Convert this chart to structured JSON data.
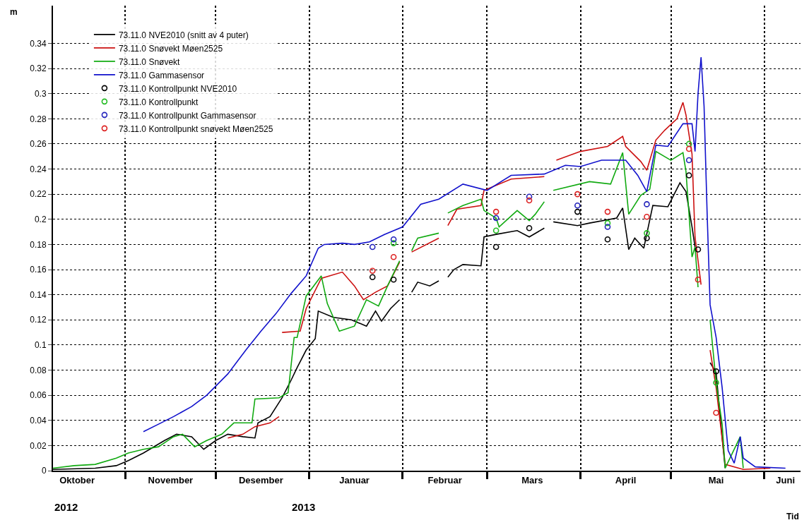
{
  "chart_data": {
    "type": "line",
    "xlabel": "Tid",
    "ylabel": "m",
    "annotations": [
      "2012",
      "2013"
    ],
    "xlim": [
      "2012-10-08",
      "2013-06-13"
    ],
    "xticks": [
      {
        "value": "2012-10-16",
        "label": "Oktober"
      },
      {
        "value": "2012-11-16",
        "label": "November"
      },
      {
        "value": "2012-12-16",
        "label": "Desember"
      },
      {
        "value": "2013-01-16",
        "label": "Januar"
      },
      {
        "value": "2013-02-15",
        "label": "Februar"
      },
      {
        "value": "2013-03-16",
        "label": "Mars"
      },
      {
        "value": "2013-04-16",
        "label": "April"
      },
      {
        "value": "2013-05-16",
        "label": "Mai"
      },
      {
        "value": "2013-06-08",
        "label": "Juni"
      },
      {
        "value": "2012-11-01",
        "label": null
      },
      {
        "value": "2012-12-01",
        "label": null
      },
      {
        "value": "2013-01-01",
        "label": null
      },
      {
        "value": "2013-02-01",
        "label": null
      },
      {
        "value": "2013-03-01",
        "label": null
      },
      {
        "value": "2013-04-01",
        "label": null
      },
      {
        "value": "2013-05-01",
        "label": null
      },
      {
        "value": "2013-06-01",
        "label": null
      }
    ],
    "ylim": [
      0,
      0.37
    ],
    "yticks": [
      0,
      0.02,
      0.04,
      0.06,
      0.08,
      0.1,
      0.12,
      0.14,
      0.16,
      0.18,
      0.2,
      0.22,
      0.24,
      0.26,
      0.28,
      0.3,
      0.32,
      0.34
    ],
    "grid": true,
    "legend": "top left",
    "line_style": "solid",
    "series": [
      {
        "name": "73.11.0 NVE2010 (snitt av 4 puter)",
        "color": "#000000",
        "x": [
          "2012-10-08",
          "2012-10-22",
          "2012-10-29",
          "2012-11-02",
          "2012-11-07",
          "2012-11-14",
          "2012-11-18",
          "2012-11-23",
          "2012-11-27",
          "2012-12-01",
          "2012-12-05",
          "2012-12-10",
          "2012-12-14",
          "2012-12-15",
          "2012-12-19",
          "2012-12-23",
          "2012-12-26",
          "2012-12-28",
          "2012-12-31",
          "2013-01-03",
          "2013-01-04",
          "2013-01-09",
          "2013-01-15",
          "2013-01-20",
          "2013-01-23",
          "2013-01-25",
          "2013-01-28",
          "2013-01-31",
          "2013-02-02",
          "2013-02-04",
          "2013-02-06",
          "2013-02-10",
          "2013-02-13",
          "2013-02-14",
          "2013-02-16",
          "2013-02-18",
          "2013-02-21",
          "2013-02-27",
          "2013-02-28",
          "2013-03-04",
          "2013-03-11",
          "2013-03-15",
          "2013-03-20",
          "2013-03-22",
          "2013-03-23",
          "2013-03-31",
          "2013-04-04",
          "2013-04-13",
          "2013-04-15",
          "2013-04-17",
          "2013-04-19",
          "2013-04-22",
          "2013-04-25",
          "2013-04-30",
          "2013-05-04",
          "2013-05-06",
          "2013-05-08",
          "2013-05-09",
          "2013-05-12",
          "2013-05-14",
          "2013-05-16",
          "2013-05-18",
          "2013-05-19"
        ],
        "values": [
          0.001,
          0.002,
          0.004,
          0.008,
          0.014,
          0.024,
          0.029,
          0.027,
          0.017,
          0.024,
          0.029,
          0.027,
          0.026,
          0.038,
          0.043,
          0.058,
          0.072,
          0.082,
          0.096,
          0.105,
          0.127,
          0.122,
          0.12,
          0.115,
          0.127,
          0.119,
          0.129,
          0.136,
          null,
          0.142,
          0.15,
          0.147,
          0.151,
          null,
          0.154,
          0.16,
          0.164,
          0.163,
          0.186,
          0.188,
          0.191,
          0.186,
          0.193,
          null,
          0.198,
          0.195,
          0.197,
          0.201,
          0.209,
          0.176,
          0.185,
          0.177,
          0.211,
          0.21,
          0.229,
          0.222,
          0.194,
          0.178,
          null,
          0.086,
          0.078,
          0.026,
          0.002
        ]
      },
      {
        "name": "73.11.0 Snøvekt Møen2525",
        "color": "#cc1111",
        "x": [
          "2012-12-05",
          "2012-12-10",
          "2012-12-14",
          "2012-12-19",
          "2012-12-22",
          "2012-12-22T12:00",
          "2012-12-23",
          "2012-12-29",
          "2012-12-31",
          "2013-01-05",
          "2013-01-12",
          "2013-01-16",
          "2013-01-19",
          "2013-01-23",
          "2013-01-27",
          "2013-01-31",
          "2013-02-02",
          "2013-02-04",
          "2013-02-13",
          "2013-02-14",
          "2013-02-16",
          "2013-02-19",
          "2013-02-27",
          "2013-02-28",
          "2013-03-09",
          "2013-03-20",
          "2013-03-22",
          "2013-03-24",
          "2013-04-01",
          "2013-04-10",
          "2013-04-15",
          "2013-04-16",
          "2013-04-21",
          "2013-04-23",
          "2013-04-26",
          "2013-04-29",
          "2013-05-03",
          "2013-05-05",
          "2013-05-06",
          "2013-05-08",
          "2013-05-09",
          "2013-05-11",
          "2013-05-12",
          "2013-05-14",
          "2013-05-16",
          "2013-05-17",
          "2013-05-19",
          "2013-05-25",
          "2013-06-03"
        ],
        "values": [
          0.026,
          0.029,
          0.035,
          0.038,
          0.043,
          null,
          0.11,
          0.111,
          0.129,
          0.153,
          0.158,
          0.147,
          0.136,
          0.142,
          0.147,
          0.166,
          null,
          0.174,
          0.185,
          null,
          0.195,
          0.208,
          0.211,
          0.223,
          0.232,
          0.234,
          null,
          0.247,
          0.254,
          0.258,
          0.266,
          0.258,
          0.246,
          0.239,
          0.263,
          0.271,
          0.28,
          0.293,
          0.283,
          0.252,
          0.186,
          0.148,
          null,
          0.096,
          0.066,
          0.046,
          0.005,
          0.001,
          0.002
        ]
      },
      {
        "name": "73.11.0 Snøvekt",
        "color": "#11aa11",
        "x": [
          "2012-10-08",
          "2012-10-15",
          "2012-10-22",
          "2012-10-29",
          "2012-11-02",
          "2012-11-07",
          "2012-11-12",
          "2012-11-17",
          "2012-11-20",
          "2012-11-24",
          "2012-11-28",
          "2012-12-03",
          "2012-12-07",
          "2012-12-13",
          "2012-12-14",
          "2012-12-22",
          "2012-12-25",
          "2012-12-27",
          "2012-12-28",
          "2012-12-31",
          "2013-01-05",
          "2013-01-07",
          "2013-01-11",
          "2013-01-16",
          "2013-01-20",
          "2013-01-24",
          "2013-01-27",
          "2013-01-31",
          "2013-02-02",
          "2013-02-04",
          "2013-02-06",
          "2013-02-13",
          "2013-02-14",
          "2013-02-16",
          "2013-02-21",
          "2013-02-27",
          "2013-02-28",
          "2013-03-04",
          "2013-03-05",
          "2013-03-11",
          "2013-03-15",
          "2013-03-17",
          "2013-03-20",
          "2013-03-22",
          "2013-03-23",
          "2013-04-04",
          "2013-04-11",
          "2013-04-15",
          "2013-04-17",
          "2013-04-21",
          "2013-04-24",
          "2013-04-26",
          "2013-05-01",
          "2013-05-05",
          "2013-05-06",
          "2013-05-08",
          "2013-05-09",
          "2013-05-10",
          "2013-05-12",
          "2013-05-14",
          "2013-05-16",
          "2013-05-18",
          "2013-05-19",
          "2013-05-24",
          "2013-05-25"
        ],
        "values": [
          0.002,
          0.004,
          0.005,
          0.01,
          0.014,
          0.017,
          0.019,
          0.027,
          0.029,
          0.019,
          0.024,
          0.029,
          0.038,
          0.038,
          0.057,
          0.058,
          0.062,
          0.106,
          0.106,
          0.139,
          0.155,
          0.133,
          0.111,
          0.115,
          0.136,
          0.131,
          0.147,
          0.167,
          null,
          0.175,
          0.185,
          0.189,
          null,
          0.205,
          0.211,
          0.216,
          0.207,
          0.201,
          0.194,
          0.207,
          0.199,
          0.204,
          0.214,
          null,
          0.223,
          0.23,
          0.228,
          0.253,
          0.204,
          0.219,
          0.224,
          0.254,
          0.247,
          0.253,
          0.238,
          0.17,
          0.178,
          0.146,
          null,
          0.12,
          0.07,
          0.037,
          0.002,
          0.027,
          0.002
        ]
      },
      {
        "name": "73.11.0 Gammasensor",
        "color": "#1111cc",
        "x": [
          "2012-11-07",
          "2012-11-12",
          "2012-11-17",
          "2012-11-23",
          "2012-11-28",
          "2012-12-05",
          "2012-12-11",
          "2012-12-16",
          "2012-12-21",
          "2012-12-26",
          "2012-12-31",
          "2013-01-04",
          "2013-01-06",
          "2013-01-12",
          "2013-01-16",
          "2013-01-21",
          "2013-01-26",
          "2013-02-01",
          "2013-02-07",
          "2013-02-13",
          "2013-02-21",
          "2013-03-01",
          "2013-03-09",
          "2013-03-20",
          "2013-03-27",
          "2013-04-01",
          "2013-04-08",
          "2013-04-16",
          "2013-04-20",
          "2013-04-23",
          "2013-04-26",
          "2013-04-30",
          "2013-05-05",
          "2013-05-08",
          "2013-05-09",
          "2013-05-10",
          "2013-05-11",
          "2013-05-12",
          "2013-05-13",
          "2013-05-14",
          "2013-05-16",
          "2013-05-18",
          "2013-05-20",
          "2013-05-22",
          "2013-05-24",
          "2013-05-25",
          "2013-05-29",
          "2013-06-08"
        ],
        "values": [
          0.031,
          0.037,
          0.043,
          0.051,
          0.06,
          0.077,
          0.096,
          0.111,
          0.125,
          0.141,
          0.155,
          0.177,
          0.18,
          0.181,
          0.18,
          0.182,
          0.188,
          0.194,
          0.212,
          0.216,
          0.228,
          0.223,
          0.235,
          0.236,
          0.243,
          0.242,
          0.247,
          0.247,
          0.235,
          0.222,
          0.259,
          0.258,
          0.276,
          0.276,
          0.254,
          0.3,
          0.329,
          0.29,
          0.206,
          0.132,
          0.106,
          0.066,
          0.016,
          0.006,
          0.027,
          0.01,
          0.003,
          0.002
        ]
      },
      {
        "type": "scatter",
        "marker": "circle",
        "name": "73.11.0 Kontrollpunkt NVE2010",
        "color": "#000000",
        "x": [
          "2013-01-22",
          "2013-01-29",
          "2013-03-04",
          "2013-03-15",
          "2013-03-31",
          "2013-04-10",
          "2013-04-23",
          "2013-05-07",
          "2013-05-10",
          "2013-05-16"
        ],
        "values": [
          0.154,
          0.152,
          0.178,
          0.193,
          0.206,
          0.184,
          0.185,
          0.235,
          0.176,
          0.079
        ]
      },
      {
        "type": "scatter",
        "marker": "circle",
        "name": "73.11.0 Kontrollpunkt",
        "color": "#22bb22",
        "x": [
          "2013-01-29",
          "2013-03-04",
          "2013-04-10",
          "2013-04-23",
          "2013-05-07",
          "2013-05-16"
        ],
        "values": [
          0.181,
          0.191,
          0.197,
          0.189,
          0.26,
          0.07
        ]
      },
      {
        "type": "scatter",
        "marker": "circle",
        "name": "73.11.0 Kontrollpunkt Gammasensor",
        "color": "#2222bb",
        "x": [
          "2013-01-22",
          "2013-01-29",
          "2013-03-04",
          "2013-03-15",
          "2013-03-31",
          "2013-04-10",
          "2013-04-23",
          "2013-05-07"
        ],
        "values": [
          0.178,
          0.184,
          0.201,
          0.218,
          0.211,
          0.194,
          0.212,
          0.247
        ]
      },
      {
        "type": "scatter",
        "marker": "circle",
        "name": "73.11.0 Kontrollpunkt snøvekt Møen2525",
        "color": "#dd2222",
        "x": [
          "2013-01-22",
          "2013-01-29",
          "2013-03-04",
          "2013-03-15",
          "2013-03-31",
          "2013-04-10",
          "2013-04-23",
          "2013-05-07",
          "2013-05-10",
          "2013-05-16"
        ],
        "values": [
          0.159,
          0.17,
          0.206,
          0.215,
          0.22,
          0.206,
          0.202,
          0.256,
          0.152,
          0.046
        ]
      }
    ]
  }
}
